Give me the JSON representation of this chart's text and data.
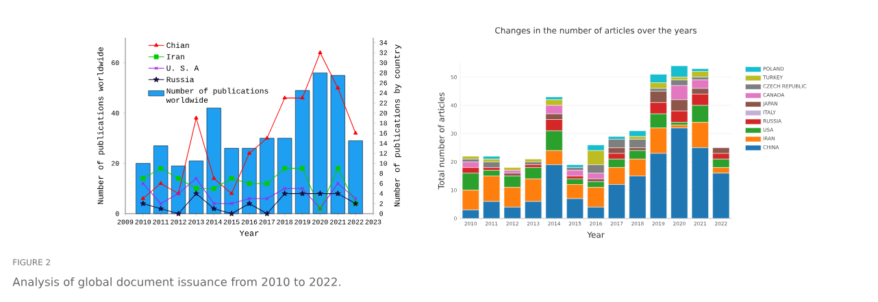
{
  "chart_data": [
    {
      "type": "bar",
      "xlabel": "Year",
      "ylabel": "Number of publications worldwide",
      "y2label": "Number of publications by country",
      "x": [
        2010,
        2011,
        2012,
        2013,
        2014,
        2015,
        2016,
        2017,
        2018,
        2019,
        2020,
        2021,
        2022
      ],
      "xlim": [
        2009,
        2023
      ],
      "xticks": [
        2009,
        2010,
        2011,
        2012,
        2013,
        2014,
        2015,
        2016,
        2017,
        2018,
        2019,
        2020,
        2021,
        2022,
        2023
      ],
      "ylim": [
        0,
        70
      ],
      "yticks": [
        0,
        20,
        40,
        60
      ],
      "y2lim": [
        0,
        35
      ],
      "y2ticks": [
        0,
        2,
        4,
        6,
        8,
        10,
        12,
        14,
        16,
        18,
        20,
        22,
        24,
        26,
        28,
        30,
        32,
        34
      ],
      "legend": "top left",
      "annotations": [
        "FIGURE 2",
        "Analysis of global document issuance from 2010 to 2022."
      ],
      "series": [
        {
          "type": "bar",
          "name": "Number of publications worldwide",
          "color": "#1e9ff2",
          "values": [
            20,
            27,
            19,
            21,
            42,
            26,
            26,
            30,
            30,
            49,
            56,
            55,
            29
          ]
        },
        {
          "type": "line",
          "axis": "y2",
          "name": "Chian",
          "color": "#ff0000",
          "marker": "triangle",
          "line_style": "solid",
          "values": [
            3,
            6,
            4,
            19,
            7,
            4,
            12,
            15,
            23,
            23,
            32,
            25,
            16
          ]
        },
        {
          "type": "line",
          "axis": "y2",
          "name": "Iran",
          "color": "#00cc00",
          "marker": "square",
          "line_style": "solid",
          "values": [
            7,
            9,
            7,
            5,
            5,
            7,
            6,
            6,
            9,
            9,
            1,
            9,
            2
          ]
        },
        {
          "type": "line",
          "axis": "y2",
          "name": "U. S. A",
          "color": "#a020f0",
          "marker": "cross",
          "line_style": "solid",
          "values": [
            6,
            2,
            4,
            7,
            2,
            2,
            3,
            3,
            5,
            5,
            1,
            6,
            3
          ]
        },
        {
          "type": "line",
          "axis": "y2",
          "name": "Russia",
          "color": "#1a1040",
          "marker": "star",
          "line_style": "solid",
          "values": [
            2,
            1,
            0,
            4,
            1,
            0,
            2,
            0,
            4,
            4,
            4,
            4,
            2
          ]
        }
      ]
    },
    {
      "type": "bar",
      "stacked": true,
      "title": "Changes in the number of articles over the years",
      "xlabel": "Year",
      "ylabel": "Total number of articles",
      "categories": [
        "2010",
        "2011",
        "2012",
        "2013",
        "2014",
        "2015",
        "2016",
        "2017",
        "2018",
        "2019",
        "2020",
        "2021",
        "2022"
      ],
      "ylim": [
        0,
        55
      ],
      "yticks": [
        0,
        10,
        20,
        30,
        40,
        50
      ],
      "grid": "y",
      "legend": "right",
      "series": [
        {
          "name": "CHINA",
          "color": "#1f77b4",
          "values": [
            3,
            6,
            4,
            6,
            19,
            7,
            4,
            12,
            15,
            23,
            32,
            25,
            16
          ]
        },
        {
          "name": "IRAN",
          "color": "#ff7f0e",
          "values": [
            7,
            9,
            7,
            8,
            5,
            5,
            7,
            6,
            6,
            9,
            1,
            9,
            2
          ]
        },
        {
          "name": "USA",
          "color": "#2ca02c",
          "values": [
            6,
            2,
            4,
            4,
            7,
            2,
            2,
            3,
            3,
            5,
            1,
            6,
            3
          ]
        },
        {
          "name": "RUSSIA",
          "color": "#d62728",
          "values": [
            2,
            1,
            0,
            1,
            4,
            1,
            0,
            2,
            0,
            4,
            4,
            4,
            2
          ]
        },
        {
          "name": "ITALY",
          "color": "#c5b0d5",
          "values": [
            0,
            0,
            0,
            0,
            0,
            0,
            0,
            0,
            0,
            0,
            0,
            0,
            0
          ]
        },
        {
          "name": "JAPAN",
          "color": "#8c564b",
          "values": [
            0,
            0,
            1,
            0,
            2,
            0,
            1,
            2,
            1,
            4,
            4,
            2,
            2
          ]
        },
        {
          "name": "CANADA",
          "color": "#e377c2",
          "values": [
            2,
            0,
            1,
            0,
            3,
            2,
            2,
            0,
            0,
            0,
            5,
            3,
            0
          ]
        },
        {
          "name": "CZECH REPUBLIC",
          "color": "#7f7f7f",
          "values": [
            1,
            2,
            0,
            1,
            0,
            1,
            3,
            3,
            3,
            1,
            2,
            1,
            0
          ]
        },
        {
          "name": "TURKEY",
          "color": "#bcbd22",
          "values": [
            1,
            1,
            1,
            1,
            2,
            0,
            5,
            0,
            1,
            2,
            1,
            2,
            0
          ]
        },
        {
          "name": "POLAND",
          "color": "#17becf",
          "values": [
            0,
            1,
            0,
            0,
            1,
            1,
            2,
            1,
            2,
            3,
            4,
            1,
            0
          ]
        }
      ]
    }
  ]
}
